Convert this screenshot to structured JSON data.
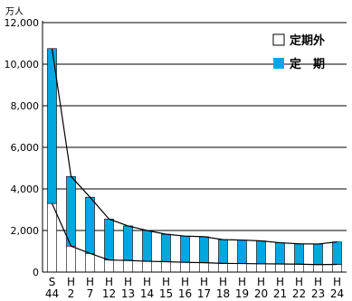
{
  "chart_data": {
    "type": "bar",
    "stacked": true,
    "unit_label": "万人",
    "ylim": [
      0,
      12000
    ],
    "y_ticks": [
      {
        "value": 0,
        "label": "0"
      },
      {
        "value": 2000,
        "label": "2,000"
      },
      {
        "value": 4000,
        "label": "4,000"
      },
      {
        "value": 6000,
        "label": "6,000"
      },
      {
        "value": 8000,
        "label": "8,000"
      },
      {
        "value": 10000,
        "label": "10,000"
      },
      {
        "value": 12000,
        "label": "12,000"
      }
    ],
    "grid": true,
    "legend_position": "top-right",
    "categories": [
      {
        "top": "S",
        "bottom": "44"
      },
      {
        "top": "H",
        "bottom": "2"
      },
      {
        "top": "H",
        "bottom": "7"
      },
      {
        "top": "H",
        "bottom": "12"
      },
      {
        "top": "H",
        "bottom": "13"
      },
      {
        "top": "H",
        "bottom": "14"
      },
      {
        "top": "H",
        "bottom": "15"
      },
      {
        "top": "H",
        "bottom": "16"
      },
      {
        "top": "H",
        "bottom": "17"
      },
      {
        "top": "H",
        "bottom": "18"
      },
      {
        "top": "H",
        "bottom": "19"
      },
      {
        "top": "H",
        "bottom": "20"
      },
      {
        "top": "H",
        "bottom": "21"
      },
      {
        "top": "H",
        "bottom": "22"
      },
      {
        "top": "H",
        "bottom": "23"
      },
      {
        "top": "H",
        "bottom": "24"
      }
    ],
    "series": [
      {
        "name": "定期外",
        "color": "#ffffff",
        "values": [
          3300,
          1250,
          900,
          580,
          560,
          520,
          500,
          470,
          450,
          420,
          410,
          400,
          390,
          380,
          360,
          370
        ]
      },
      {
        "name": "定　期",
        "color": "#00a7e1",
        "values": [
          7450,
          3350,
          2700,
          1970,
          1660,
          1480,
          1320,
          1260,
          1250,
          1140,
          1130,
          1100,
          1020,
          980,
          990,
          1080
        ]
      }
    ]
  }
}
